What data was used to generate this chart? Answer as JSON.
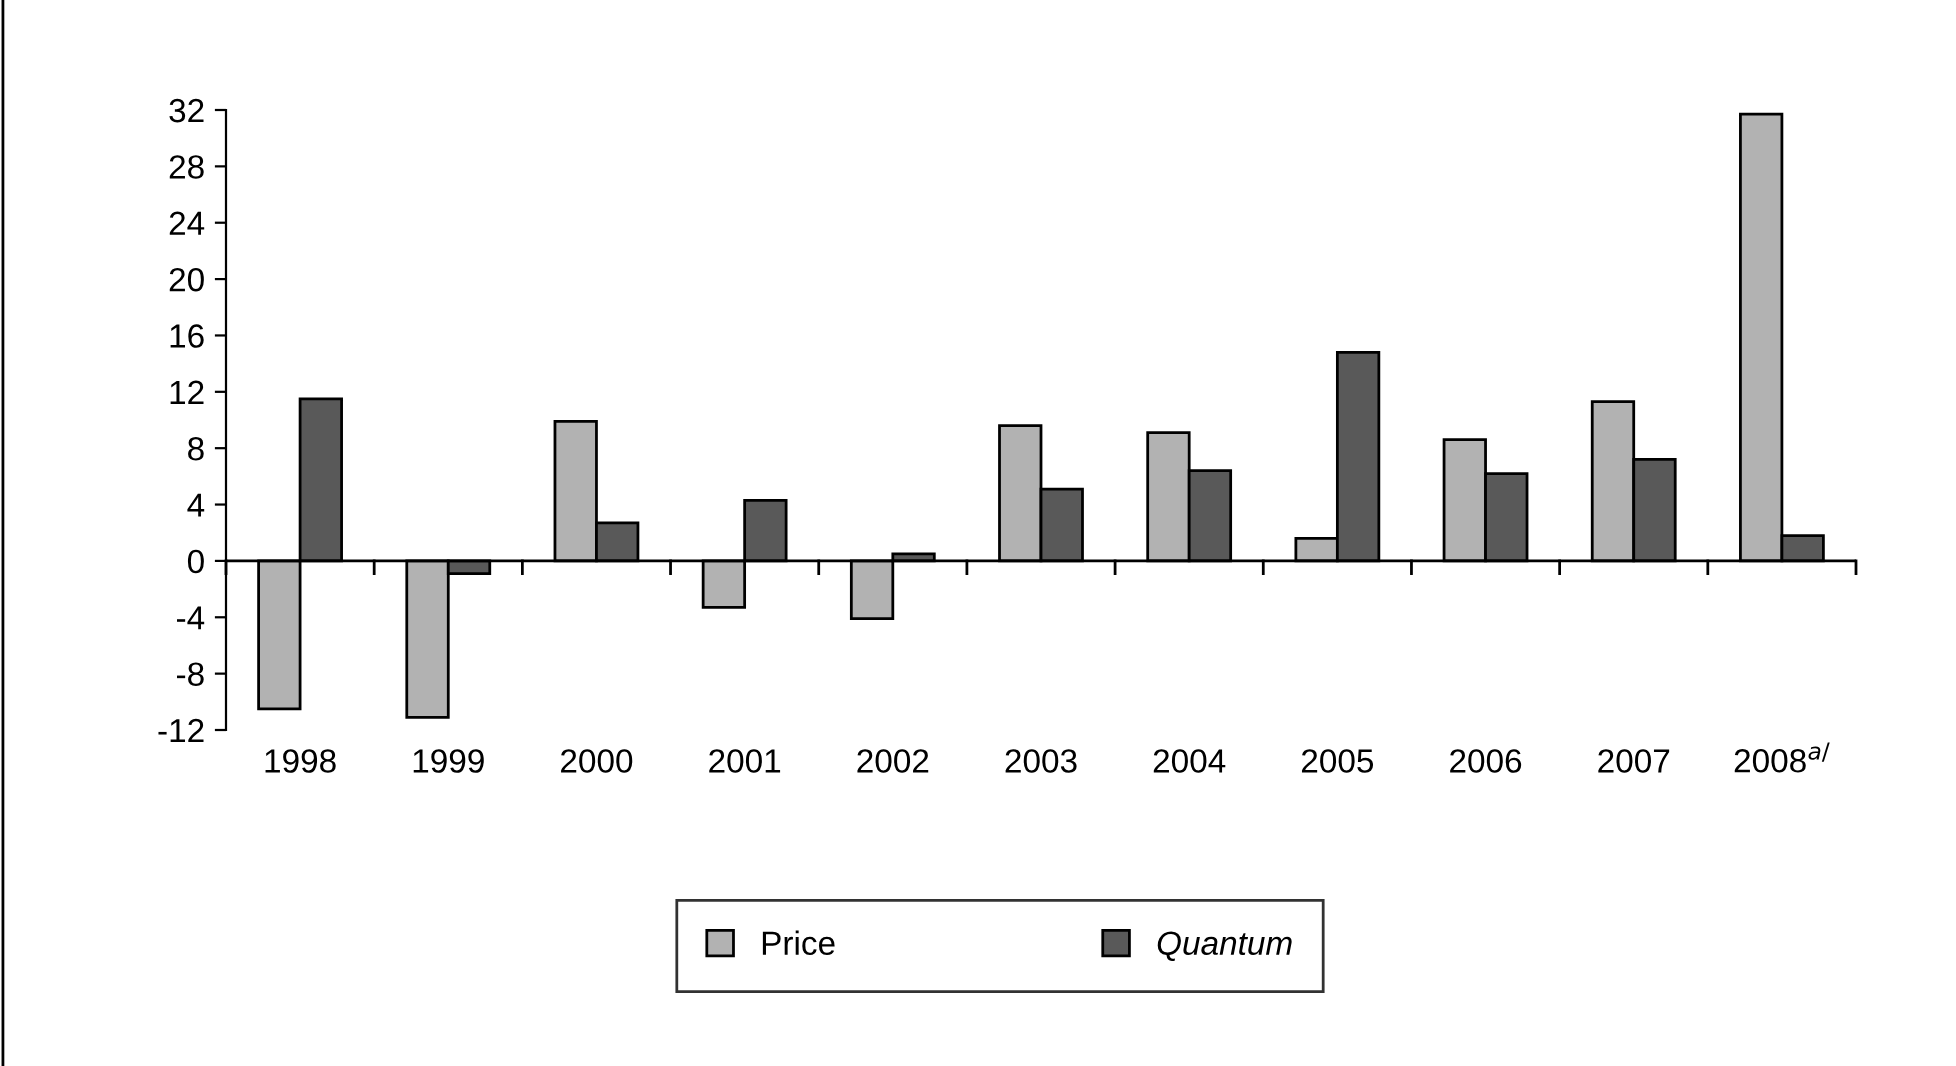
{
  "chart_data": {
    "type": "bar",
    "categories": [
      "1998",
      "1999",
      "2000",
      "2001",
      "2002",
      "2003",
      "2004",
      "2005",
      "2006",
      "2007",
      "2008$^{a/}$"
    ],
    "series": [
      {
        "name": "Price",
        "color": "#b2b2b2",
        "values": [
          -10.5,
          -11.1,
          9.9,
          -3.3,
          -4.1,
          9.6,
          9.1,
          1.6,
          8.6,
          11.3,
          31.7
        ]
      },
      {
        "name": "Quantum",
        "color": "#595959",
        "values": [
          11.5,
          -0.9,
          2.7,
          4.3,
          0.5,
          5.1,
          6.4,
          14.8,
          6.2,
          7.2,
          1.8
        ]
      }
    ],
    "ylim": [
      -12,
      32
    ],
    "yticks": [
      -12,
      -8,
      -4,
      0,
      4,
      8,
      12,
      16,
      20,
      24,
      28,
      32
    ],
    "legend": "bottom"
  }
}
